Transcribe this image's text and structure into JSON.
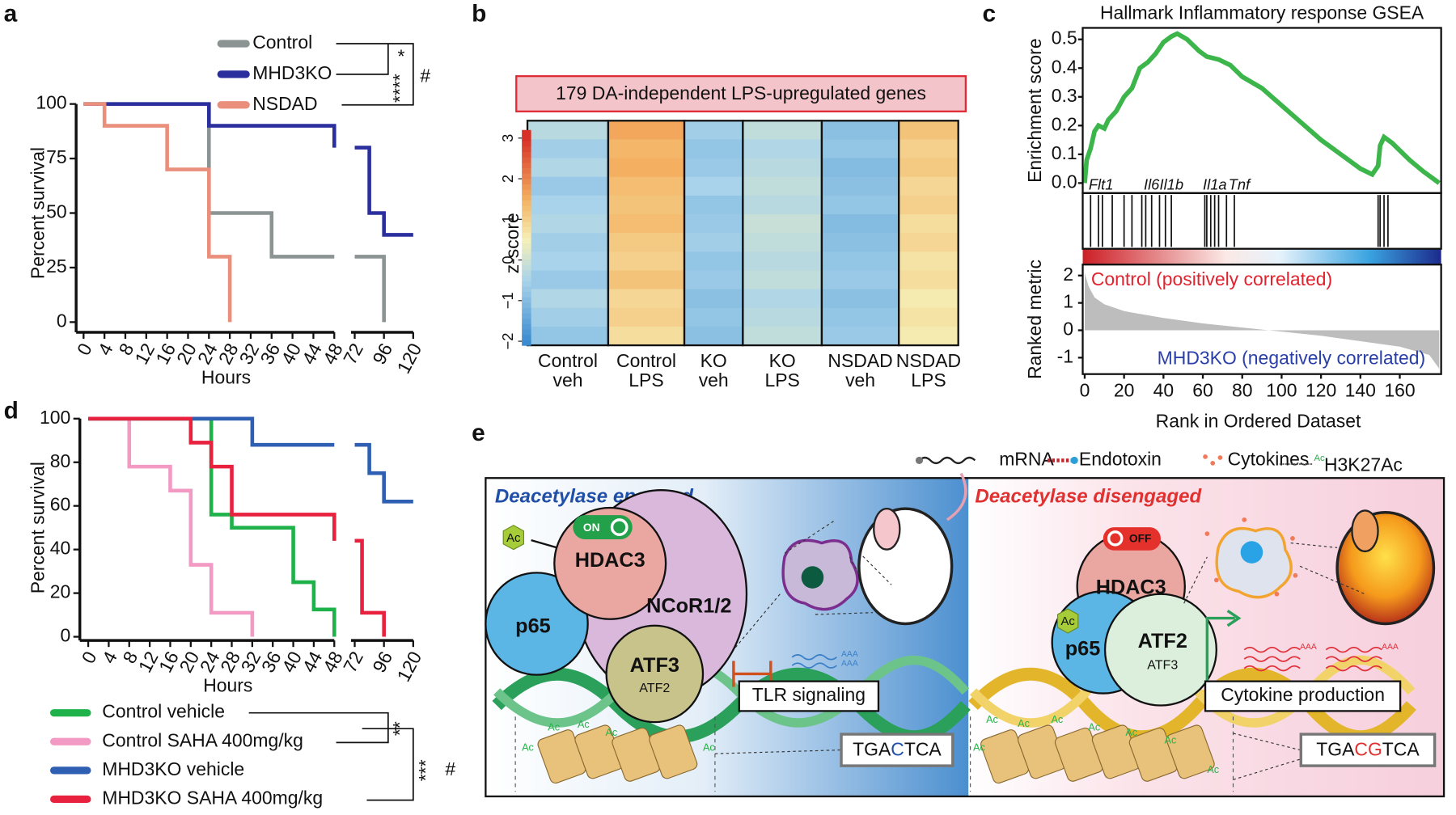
{
  "panel_labels": [
    "a",
    "b",
    "c",
    "d",
    "e"
  ],
  "chart_data": [
    {
      "type": "survival",
      "y_label": "Percent survival",
      "x_label": "Hours",
      "xlim": [
        0,
        120
      ],
      "x_break": [
        48,
        72
      ],
      "ylim": [
        0,
        100
      ],
      "xticks": [
        0,
        4,
        8,
        12,
        16,
        20,
        24,
        28,
        32,
        36,
        40,
        44,
        48,
        72,
        96,
        120
      ],
      "yticks": [
        0,
        25,
        50,
        75,
        100
      ],
      "series": [
        {
          "name": "Control",
          "color": "#8c9393",
          "x": [
            0,
            24,
            36,
            96
          ],
          "values": [
            100,
            50,
            30,
            0
          ]
        },
        {
          "name": "MHD3KO",
          "color": "#2b2f9e",
          "x": [
            0,
            24,
            48,
            84,
            96,
            120
          ],
          "values": [
            100,
            90,
            80,
            50,
            40,
            40
          ]
        },
        {
          "name": "NSDAD",
          "color": "#ea8f7c",
          "x": [
            0,
            4,
            16,
            24,
            28
          ],
          "values": [
            100,
            90,
            70,
            30,
            0
          ]
        }
      ],
      "significance": [
        "*",
        "****",
        "#"
      ]
    },
    {
      "type": "heatmap",
      "title": "179 DA-independent LPS-upregulated genes",
      "colorbar_label": "z-score",
      "zlim": [
        -2.1,
        3.2
      ],
      "zticks": [
        {
          "value": -2,
          "label": "−2"
        },
        {
          "value": -1,
          "label": "−1"
        },
        0,
        1,
        2,
        3
      ],
      "categories": [
        [
          "Control",
          "veh"
        ],
        [
          "Control",
          "LPS"
        ],
        [
          "KO",
          "veh"
        ],
        [
          "KO",
          "LPS"
        ],
        [
          "NSDAD",
          "veh"
        ],
        [
          "NSDAD",
          "LPS"
        ]
      ],
      "values": [
        [
          -0.3,
          -0.6,
          -0.4,
          -0.7,
          -0.5,
          -0.4,
          -0.6,
          -0.5,
          -0.7,
          -0.4,
          -0.6,
          -0.8
        ],
        [
          1.6,
          1.4,
          1.5,
          1.3,
          1.2,
          1.3,
          1.1,
          1.0,
          1.2,
          0.9,
          1.0,
          0.8
        ],
        [
          -0.6,
          -0.8,
          -0.7,
          -0.5,
          -0.8,
          -0.7,
          -0.6,
          -0.8,
          -0.7,
          -0.9,
          -0.8,
          -0.9
        ],
        [
          -0.2,
          -0.4,
          -0.3,
          -0.2,
          -0.3,
          -0.1,
          -0.2,
          -0.3,
          -0.2,
          -0.4,
          -0.3,
          -0.2
        ],
        [
          -0.9,
          -0.8,
          -1.0,
          -0.9,
          -0.8,
          -1.0,
          -0.9,
          -0.8,
          -0.7,
          -0.9,
          -0.8,
          -0.7
        ],
        [
          1.2,
          1.0,
          1.1,
          0.9,
          1.0,
          0.8,
          0.9,
          0.7,
          0.8,
          0.6,
          0.7,
          0.6
        ]
      ]
    },
    {
      "type": "gsea",
      "title": "Hallmark Inflammatory response GSEA",
      "y_label": "Enrichment score",
      "y2_label": "Ranked metric",
      "x_label": "Rank in Ordered Dataset",
      "xlim": [
        -1,
        181
      ],
      "xticks": [
        0,
        20,
        40,
        60,
        80,
        100,
        120,
        140,
        160
      ],
      "ylim": [
        -0.035,
        0.54
      ],
      "yticks": [
        {
          "value": 0,
          "label": "0.0"
        },
        0.1,
        0.2,
        0.3,
        0.4,
        0.5
      ],
      "y2lim": [
        -1.6,
        2.4
      ],
      "y2ticks": [
        -1,
        0,
        1,
        2
      ],
      "es_color": "#3cb54a",
      "x": [
        0,
        1,
        3,
        5,
        7,
        10,
        12,
        16,
        20,
        24,
        28,
        32,
        36,
        40,
        44,
        47,
        52,
        58,
        62,
        68,
        74,
        80,
        90,
        100,
        110,
        120,
        130,
        140,
        146,
        149,
        150,
        152,
        156,
        165,
        172,
        180
      ],
      "values": [
        0,
        0.08,
        0.12,
        0.18,
        0.2,
        0.19,
        0.22,
        0.25,
        0.3,
        0.33,
        0.4,
        0.42,
        0.45,
        0.49,
        0.51,
        0.52,
        0.5,
        0.46,
        0.44,
        0.43,
        0.41,
        0.37,
        0.33,
        0.27,
        0.21,
        0.15,
        0.1,
        0.05,
        0.03,
        0.06,
        0.13,
        0.16,
        0.14,
        0.08,
        0.04,
        0
      ],
      "hits": [
        3,
        7,
        9,
        14,
        20,
        24,
        29,
        31,
        34,
        38,
        41,
        44,
        61,
        62,
        64,
        66,
        68,
        72,
        76,
        149,
        150,
        152,
        154
      ],
      "genes": [
        {
          "label": "Flt1",
          "rank": 2
        },
        {
          "label": "Il6",
          "rank": 30
        },
        {
          "label": "Il1b",
          "rank": 38
        },
        {
          "label": "Il1a",
          "rank": 60
        },
        {
          "label": "Tnf",
          "rank": 73
        }
      ],
      "metric_x": [
        0,
        2,
        5,
        10,
        20,
        40,
        60,
        80,
        100,
        120,
        140,
        160,
        175,
        180
      ],
      "metric": [
        2.1,
        1.6,
        1.2,
        0.95,
        0.7,
        0.45,
        0.25,
        0.1,
        -0.05,
        -0.2,
        -0.4,
        -0.6,
        -0.9,
        -1.4
      ],
      "positive_label": "Control (positively correlated)",
      "negative_label": "MHD3KO (negatively correlated)"
    },
    {
      "type": "survival",
      "y_label": "Percent survival",
      "x_label": "Hours",
      "xlim": [
        0,
        120
      ],
      "x_break": [
        48,
        72
      ],
      "ylim": [
        0,
        100
      ],
      "xticks": [
        0,
        4,
        8,
        12,
        16,
        20,
        24,
        28,
        32,
        36,
        40,
        44,
        48,
        72,
        96,
        120
      ],
      "yticks": [
        0,
        20,
        40,
        60,
        80,
        100
      ],
      "series": [
        {
          "name": "Control vehicle",
          "color": "#1fb24a",
          "x": [
            0,
            24,
            28,
            40,
            44,
            48
          ],
          "values": [
            100,
            56,
            50,
            25,
            12.5,
            0
          ]
        },
        {
          "name": "Control SAHA 400mg/kg",
          "color": "#f29ac4",
          "x": [
            0,
            8,
            16,
            20,
            24,
            32
          ],
          "values": [
            100,
            78,
            67,
            33,
            11,
            0
          ]
        },
        {
          "name": "MHD3KO vehicle",
          "color": "#2f5fb3",
          "x": [
            0,
            32,
            84,
            96,
            120
          ],
          "values": [
            100,
            88,
            75,
            62,
            62
          ]
        },
        {
          "name": "MHD3KO SAHA 400mg/kg",
          "color": "#e8213f",
          "x": [
            0,
            20,
            24,
            28,
            48,
            78,
            96
          ],
          "values": [
            100,
            89,
            78,
            56,
            44,
            11,
            0
          ]
        }
      ],
      "significance": [
        "**",
        "***",
        "#"
      ]
    }
  ],
  "diagram": {
    "legend": [
      "mRNA",
      "Endotoxin",
      "Cytokines",
      "H3K27Ac"
    ],
    "left": {
      "title": "Deacetylase engaged",
      "switch": "ON",
      "hdac": "HDAC3",
      "p65": "p65",
      "ncor": "NCoR1/2",
      "tf_main": "ATF3",
      "tf_sub": "ATF2",
      "box": "TLR signaling",
      "motif": [
        "TGA",
        "C",
        "TCA"
      ]
    },
    "right": {
      "title": "Deacetylase disengaged",
      "switch": "OFF",
      "hdac": "HDAC3",
      "p65": "p65",
      "tf_main": "ATF2",
      "tf_sub": "ATF3",
      "box": "Cytokine production",
      "motif": [
        "TGA",
        "CG",
        "TCA"
      ]
    },
    "ac": "Ac",
    "polya": "AAA"
  }
}
